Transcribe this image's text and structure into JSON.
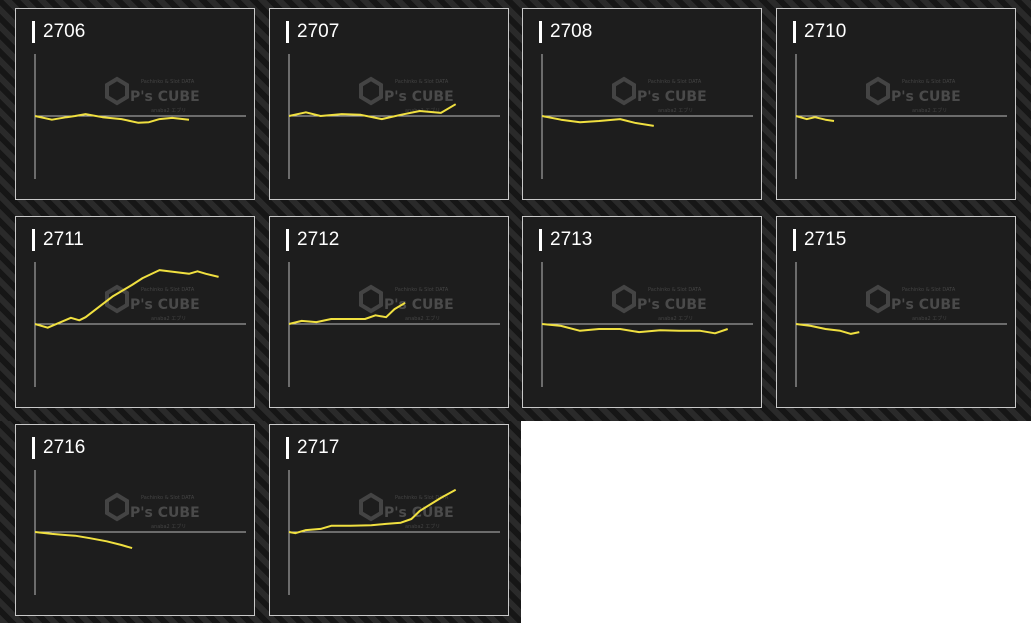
{
  "watermark": {
    "brand": "P's CUBE",
    "tagline": "Pachinko & Slot DATA",
    "sub": "anaba2 エブリ"
  },
  "colors": {
    "line": "#f0e040",
    "axis": "#bbbbbb",
    "card_bg": "#1d1d1d",
    "border": "#c8c8c8"
  },
  "chart_data": [
    {
      "type": "line",
      "title": "2706",
      "xlim": [
        0,
        100
      ],
      "ylim": [
        -100,
        100
      ],
      "x": [
        0,
        8,
        15,
        19,
        24,
        32,
        41,
        49,
        54,
        59,
        65,
        73
      ],
      "y": [
        0,
        -6,
        -2,
        0,
        3,
        -2,
        -5,
        -11,
        -10,
        -5,
        -3,
        -6
      ]
    },
    {
      "type": "line",
      "title": "2707",
      "xlim": [
        0,
        100
      ],
      "ylim": [
        -100,
        100
      ],
      "x": [
        0,
        8,
        15,
        25,
        34,
        44,
        53,
        62,
        72,
        79
      ],
      "y": [
        0,
        6,
        0,
        3,
        2,
        -5,
        2,
        8,
        5,
        19
      ]
    },
    {
      "type": "line",
      "title": "2708",
      "xlim": [
        0,
        100
      ],
      "ylim": [
        -100,
        100
      ],
      "x": [
        0,
        9,
        18,
        27,
        37,
        44,
        53
      ],
      "y": [
        0,
        -6,
        -10,
        -8,
        -5,
        -11,
        -16
      ]
    },
    {
      "type": "line",
      "title": "2710",
      "xlim": [
        0,
        100
      ],
      "ylim": [
        -100,
        100
      ],
      "x": [
        0,
        5,
        9,
        14,
        18
      ],
      "y": [
        0,
        -5,
        -2,
        -6,
        -8
      ]
    },
    {
      "type": "line",
      "title": "2711",
      "xlim": [
        0,
        100
      ],
      "ylim": [
        -100,
        100
      ],
      "x": [
        0,
        6,
        17,
        21,
        24,
        37,
        46,
        51,
        59,
        73,
        77,
        81,
        87
      ],
      "y": [
        0,
        -6,
        10,
        6,
        11,
        45,
        63,
        74,
        87,
        81,
        85,
        81,
        76
      ]
    },
    {
      "type": "line",
      "title": "2712",
      "xlim": [
        0,
        100
      ],
      "ylim": [
        -100,
        100
      ],
      "x": [
        0,
        6,
        13,
        20,
        29,
        36,
        41,
        46,
        50,
        55
      ],
      "y": [
        0,
        5,
        3,
        8,
        8,
        8,
        14,
        11,
        24,
        34
      ]
    },
    {
      "type": "line",
      "title": "2713",
      "xlim": [
        0,
        100
      ],
      "ylim": [
        -100,
        100
      ],
      "x": [
        0,
        9,
        18,
        27,
        37,
        46,
        56,
        65,
        75,
        82,
        88
      ],
      "y": [
        0,
        -3,
        -11,
        -8,
        -8,
        -13,
        -10,
        -11,
        -11,
        -15,
        -8
      ]
    },
    {
      "type": "line",
      "title": "2715",
      "xlim": [
        0,
        100
      ],
      "ylim": [
        -100,
        100
      ],
      "x": [
        0,
        7,
        14,
        21,
        26,
        30
      ],
      "y": [
        0,
        -3,
        -8,
        -11,
        -16,
        -13
      ]
    },
    {
      "type": "line",
      "title": "2716",
      "xlim": [
        0,
        100
      ],
      "ylim": [
        -100,
        100
      ],
      "x": [
        0,
        8,
        15,
        19,
        26,
        34,
        41,
        46
      ],
      "y": [
        0,
        -3,
        -5,
        -6,
        -10,
        -15,
        -21,
        -26
      ]
    },
    {
      "type": "line",
      "title": "2717",
      "xlim": [
        0,
        100
      ],
      "ylim": [
        -100,
        100
      ],
      "x": [
        0,
        3,
        8,
        15,
        20,
        29,
        39,
        46,
        53,
        58,
        62,
        72,
        79
      ],
      "y": [
        0,
        -2,
        3,
        5,
        10,
        10,
        11,
        13,
        15,
        21,
        34,
        55,
        68
      ]
    }
  ]
}
